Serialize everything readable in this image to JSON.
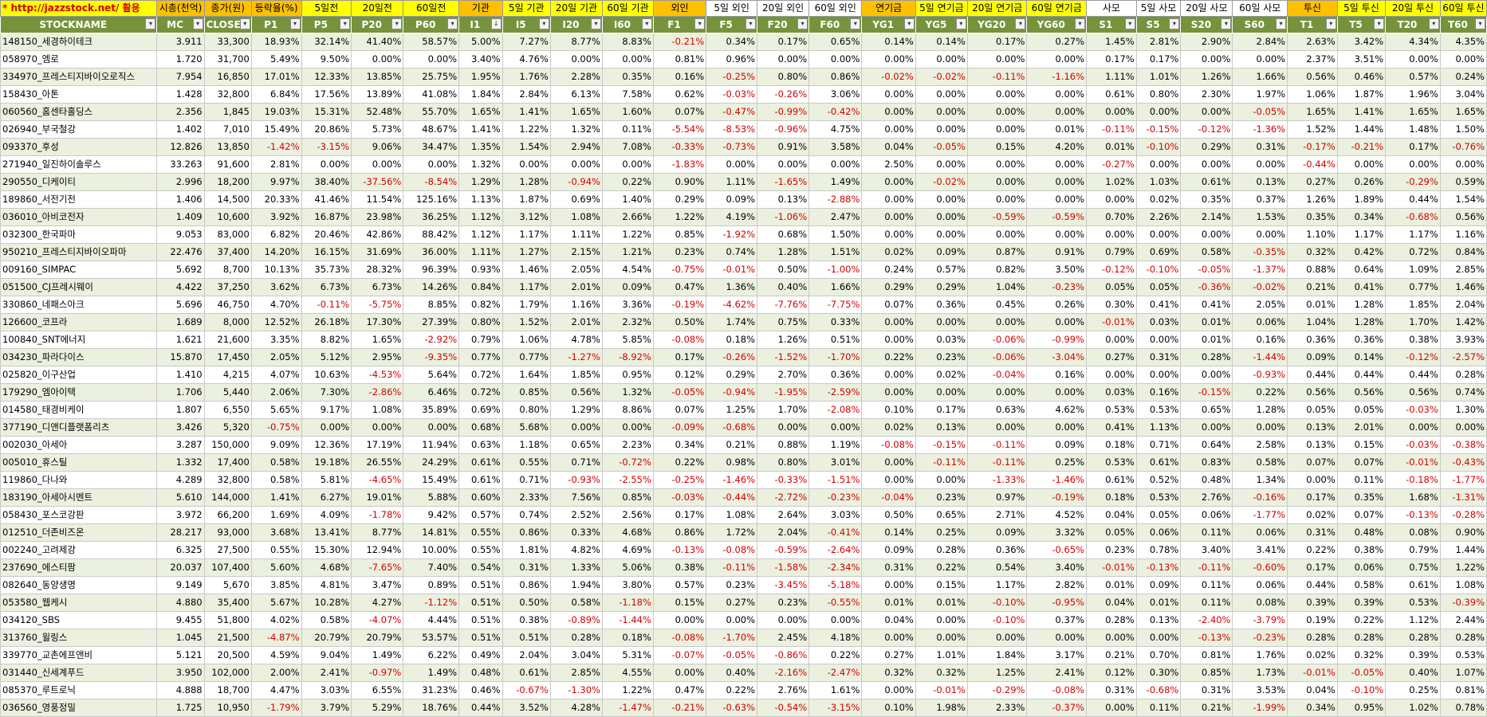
{
  "sheet": {
    "link_text": "* http://jazzstock.net/ 활용",
    "group_headers": [
      "시총(천억)",
      "종가(원)",
      "등락율(%)",
      "5일전",
      "20일전",
      "60일전",
      "기관",
      "5일 기관",
      "20일 기관",
      "60일 기관",
      "외인",
      "5일 외인",
      "20일 외인",
      "60일 외인",
      "연기금",
      "5일 연기금",
      "20일 연기금",
      "60일 연기금",
      "사모",
      "5일 사모",
      "20일 사모",
      "60일 사모",
      "투신",
      "5일 투신",
      "20일 투신",
      "60일 투신"
    ],
    "columns": [
      "STOCKNAME",
      "MC",
      "CLOSE",
      "P1",
      "P5",
      "P20",
      "P60",
      "I1",
      "I5",
      "I20",
      "I60",
      "F1",
      "F5",
      "F20",
      "F60",
      "YG1",
      "YG5",
      "YG20",
      "YG60",
      "S1",
      "S5",
      "S20",
      "S60",
      "T1",
      "T5",
      "T20",
      "T60"
    ],
    "sort_indicator_col": "I1",
    "rows": [
      [
        "148150_세경하이테크",
        "3.911",
        "33,300",
        "18.93%",
        "32.14%",
        "41.40%",
        "58.57%",
        "5.00%",
        "7.27%",
        "8.77%",
        "8.83%",
        "-0.21%",
        "0.34%",
        "0.17%",
        "0.65%",
        "0.14%",
        "0.14%",
        "0.17%",
        "0.27%",
        "1.45%",
        "2.81%",
        "2.90%",
        "2.84%",
        "2.63%",
        "3.42%",
        "4.34%",
        "4.35%"
      ],
      [
        "058970_엠로",
        "1.720",
        "31,700",
        "5.49%",
        "9.50%",
        "0.00%",
        "0.00%",
        "3.40%",
        "4.76%",
        "0.00%",
        "0.00%",
        "0.81%",
        "0.96%",
        "0.00%",
        "0.00%",
        "0.00%",
        "0.00%",
        "0.00%",
        "0.00%",
        "0.17%",
        "0.17%",
        "0.00%",
        "0.00%",
        "2.37%",
        "3.51%",
        "0.00%",
        "0.00%"
      ],
      [
        "334970_프레스티지바이오로직스",
        "7.954",
        "16,850",
        "17.01%",
        "12.33%",
        "13.85%",
        "25.75%",
        "1.95%",
        "1.76%",
        "2.28%",
        "0.35%",
        "0.16%",
        "-0.25%",
        "0.80%",
        "0.86%",
        "-0.02%",
        "-0.02%",
        "-0.11%",
        "-1.16%",
        "1.11%",
        "1.01%",
        "1.26%",
        "1.66%",
        "0.56%",
        "0.46%",
        "0.57%",
        "0.24%"
      ],
      [
        "158430_아톤",
        "1.428",
        "32,800",
        "6.84%",
        "17.56%",
        "13.89%",
        "41.08%",
        "1.84%",
        "2.84%",
        "6.13%",
        "7.58%",
        "0.62%",
        "-0.03%",
        "-0.26%",
        "3.06%",
        "0.00%",
        "0.00%",
        "0.00%",
        "0.00%",
        "0.61%",
        "0.80%",
        "2.30%",
        "1.97%",
        "1.06%",
        "1.87%",
        "1.96%",
        "3.04%"
      ],
      [
        "060560_홈센타홀딩스",
        "2.356",
        "1,845",
        "19.03%",
        "15.31%",
        "52.48%",
        "55.70%",
        "1.65%",
        "1.41%",
        "1.65%",
        "1.60%",
        "0.07%",
        "-0.47%",
        "-0.99%",
        "-0.42%",
        "0.00%",
        "0.00%",
        "0.00%",
        "0.00%",
        "0.00%",
        "0.00%",
        "0.00%",
        "-0.05%",
        "1.65%",
        "1.41%",
        "1.65%",
        "1.65%"
      ],
      [
        "026940_부국철강",
        "1.402",
        "7,010",
        "15.49%",
        "20.86%",
        "5.73%",
        "48.67%",
        "1.41%",
        "1.22%",
        "1.32%",
        "0.11%",
        "-5.54%",
        "-8.53%",
        "-0.96%",
        "4.75%",
        "0.00%",
        "0.00%",
        "0.00%",
        "0.01%",
        "-0.11%",
        "-0.15%",
        "-0.12%",
        "-1.36%",
        "1.52%",
        "1.44%",
        "1.48%",
        "1.50%"
      ],
      [
        "093370_후성",
        "12.826",
        "13,850",
        "-1.42%",
        "-3.15%",
        "9.06%",
        "34.47%",
        "1.35%",
        "1.54%",
        "2.94%",
        "7.08%",
        "-0.33%",
        "-0.73%",
        "0.91%",
        "3.58%",
        "0.04%",
        "-0.05%",
        "0.15%",
        "4.20%",
        "0.01%",
        "-0.10%",
        "0.29%",
        "0.31%",
        "-0.17%",
        "-0.21%",
        "0.17%",
        "-0.76%"
      ],
      [
        "271940_일진하이솔루스",
        "33.263",
        "91,600",
        "2.81%",
        "0.00%",
        "0.00%",
        "0.00%",
        "1.32%",
        "0.00%",
        "0.00%",
        "0.00%",
        "-1.83%",
        "0.00%",
        "0.00%",
        "0.00%",
        "2.50%",
        "0.00%",
        "0.00%",
        "0.00%",
        "-0.27%",
        "0.00%",
        "0.00%",
        "0.00%",
        "-0.44%",
        "0.00%",
        "0.00%",
        "0.00%"
      ],
      [
        "290550_디케이티",
        "2.996",
        "18,200",
        "9.97%",
        "38.40%",
        "-37.56%",
        "-8.54%",
        "1.29%",
        "1.28%",
        "-0.94%",
        "0.22%",
        "0.90%",
        "1.11%",
        "-1.65%",
        "1.49%",
        "0.00%",
        "-0.02%",
        "0.00%",
        "0.00%",
        "1.02%",
        "1.03%",
        "0.61%",
        "0.13%",
        "0.27%",
        "0.26%",
        "-0.29%",
        "0.59%"
      ],
      [
        "189860_서전기전",
        "1.406",
        "14,500",
        "20.33%",
        "41.46%",
        "11.54%",
        "125.16%",
        "1.13%",
        "1.87%",
        "0.69%",
        "1.40%",
        "0.29%",
        "0.09%",
        "0.13%",
        "-2.88%",
        "0.00%",
        "0.00%",
        "0.00%",
        "0.00%",
        "0.00%",
        "0.02%",
        "0.35%",
        "0.37%",
        "1.26%",
        "1.89%",
        "0.44%",
        "1.54%"
      ],
      [
        "036010_아비코전자",
        "1.409",
        "10,600",
        "3.92%",
        "16.87%",
        "23.98%",
        "36.25%",
        "1.12%",
        "3.12%",
        "1.08%",
        "2.66%",
        "1.22%",
        "4.19%",
        "-1.06%",
        "2.47%",
        "0.00%",
        "0.00%",
        "-0.59%",
        "-0.59%",
        "0.70%",
        "2.26%",
        "2.14%",
        "1.53%",
        "0.35%",
        "0.34%",
        "-0.68%",
        "0.56%"
      ],
      [
        "032300_한국파마",
        "9.053",
        "83,000",
        "6.82%",
        "20.46%",
        "42.86%",
        "88.42%",
        "1.12%",
        "1.17%",
        "1.11%",
        "1.22%",
        "0.85%",
        "-1.92%",
        "0.68%",
        "1.50%",
        "0.00%",
        "0.00%",
        "0.00%",
        "0.00%",
        "0.00%",
        "0.00%",
        "0.00%",
        "0.00%",
        "1.10%",
        "1.17%",
        "1.17%",
        "1.16%"
      ],
      [
        "950210_프레스티지바이오파마",
        "22.476",
        "37,400",
        "14.20%",
        "16.15%",
        "31.69%",
        "36.00%",
        "1.11%",
        "1.27%",
        "2.15%",
        "1.21%",
        "0.23%",
        "0.74%",
        "1.28%",
        "1.51%",
        "0.02%",
        "0.09%",
        "0.87%",
        "0.91%",
        "0.79%",
        "0.69%",
        "0.58%",
        "-0.35%",
        "0.32%",
        "0.42%",
        "0.72%",
        "0.84%"
      ],
      [
        "009160_SIMPAC",
        "5.692",
        "8,700",
        "10.13%",
        "35.73%",
        "28.32%",
        "96.39%",
        "0.93%",
        "1.46%",
        "2.05%",
        "4.54%",
        "-0.75%",
        "-0.01%",
        "0.50%",
        "-1.00%",
        "0.24%",
        "0.57%",
        "0.82%",
        "3.50%",
        "-0.12%",
        "-0.10%",
        "-0.05%",
        "-1.37%",
        "0.88%",
        "0.64%",
        "1.09%",
        "2.85%"
      ],
      [
        "051500_CJ프레시웨이",
        "4.422",
        "37,250",
        "3.62%",
        "6.73%",
        "6.73%",
        "14.26%",
        "0.84%",
        "1.17%",
        "2.01%",
        "0.09%",
        "0.47%",
        "1.36%",
        "0.40%",
        "1.66%",
        "0.29%",
        "0.29%",
        "1.04%",
        "-0.23%",
        "0.05%",
        "0.05%",
        "-0.36%",
        "-0.02%",
        "0.21%",
        "0.41%",
        "0.77%",
        "1.46%"
      ],
      [
        "330860_네패스아크",
        "5.696",
        "46,750",
        "4.70%",
        "-0.11%",
        "-5.75%",
        "8.85%",
        "0.82%",
        "1.79%",
        "1.16%",
        "3.36%",
        "-0.19%",
        "-4.62%",
        "-7.76%",
        "-7.75%",
        "0.07%",
        "0.36%",
        "0.45%",
        "0.26%",
        "0.30%",
        "0.41%",
        "0.41%",
        "2.05%",
        "0.01%",
        "1.28%",
        "1.85%",
        "2.04%"
      ],
      [
        "126600_코프라",
        "1.689",
        "8,000",
        "12.52%",
        "26.18%",
        "17.30%",
        "27.39%",
        "0.80%",
        "1.52%",
        "2.01%",
        "2.32%",
        "0.50%",
        "1.74%",
        "0.75%",
        "0.33%",
        "0.00%",
        "0.00%",
        "0.00%",
        "0.00%",
        "-0.01%",
        "0.03%",
        "0.01%",
        "0.06%",
        "1.04%",
        "1.28%",
        "1.70%",
        "1.42%"
      ],
      [
        "100840_SNT에너지",
        "1.621",
        "21,600",
        "3.35%",
        "8.82%",
        "1.65%",
        "-2.92%",
        "0.79%",
        "1.06%",
        "4.78%",
        "5.85%",
        "-0.08%",
        "0.18%",
        "1.26%",
        "0.51%",
        "0.00%",
        "0.03%",
        "-0.06%",
        "-0.99%",
        "0.00%",
        "0.00%",
        "0.01%",
        "0.16%",
        "0.36%",
        "0.36%",
        "0.38%",
        "3.93%"
      ],
      [
        "034230_파라다이스",
        "15.870",
        "17,450",
        "2.05%",
        "5.12%",
        "2.95%",
        "-9.35%",
        "0.77%",
        "0.77%",
        "-1.27%",
        "-8.92%",
        "0.17%",
        "-0.26%",
        "-1.52%",
        "-1.70%",
        "0.22%",
        "0.23%",
        "-0.06%",
        "-3.04%",
        "0.27%",
        "0.31%",
        "0.28%",
        "-1.44%",
        "0.09%",
        "0.14%",
        "-0.12%",
        "-2.57%"
      ],
      [
        "025820_이구산업",
        "1.410",
        "4,215",
        "4.07%",
        "10.63%",
        "-4.53%",
        "5.64%",
        "0.72%",
        "1.64%",
        "1.85%",
        "0.95%",
        "0.12%",
        "0.29%",
        "2.70%",
        "0.36%",
        "0.00%",
        "0.02%",
        "-0.04%",
        "0.16%",
        "0.00%",
        "0.00%",
        "0.00%",
        "-0.93%",
        "0.44%",
        "0.44%",
        "0.44%",
        "0.28%"
      ],
      [
        "179290_엠아이텍",
        "1.706",
        "5,440",
        "2.06%",
        "7.30%",
        "-2.86%",
        "6.46%",
        "0.72%",
        "0.85%",
        "0.56%",
        "1.32%",
        "-0.05%",
        "-0.94%",
        "-1.95%",
        "-2.59%",
        "0.00%",
        "0.00%",
        "0.00%",
        "0.00%",
        "0.03%",
        "0.16%",
        "-0.15%",
        "0.22%",
        "0.56%",
        "0.56%",
        "0.56%",
        "0.74%"
      ],
      [
        "014580_태경비케이",
        "1.807",
        "6,550",
        "5.65%",
        "9.17%",
        "1.08%",
        "35.89%",
        "0.69%",
        "0.80%",
        "1.29%",
        "8.86%",
        "0.07%",
        "1.25%",
        "1.70%",
        "-2.08%",
        "0.10%",
        "0.17%",
        "0.63%",
        "4.62%",
        "0.53%",
        "0.53%",
        "0.65%",
        "1.28%",
        "0.05%",
        "0.05%",
        "-0.03%",
        "1.30%"
      ],
      [
        "377190_디앤디플랫폼리츠",
        "3.426",
        "5,320",
        "-0.75%",
        "0.00%",
        "0.00%",
        "0.00%",
        "0.68%",
        "5.68%",
        "0.00%",
        "0.00%",
        "-0.09%",
        "-0.68%",
        "0.00%",
        "0.00%",
        "0.02%",
        "0.13%",
        "0.00%",
        "0.00%",
        "0.41%",
        "1.13%",
        "0.00%",
        "0.00%",
        "0.13%",
        "2.01%",
        "0.00%",
        "0.00%"
      ],
      [
        "002030_아세아",
        "3.287",
        "150,000",
        "9.09%",
        "12.36%",
        "17.19%",
        "11.94%",
        "0.63%",
        "1.18%",
        "0.65%",
        "2.23%",
        "0.34%",
        "0.21%",
        "0.88%",
        "1.19%",
        "-0.08%",
        "-0.15%",
        "-0.11%",
        "0.09%",
        "0.18%",
        "0.71%",
        "0.64%",
        "2.58%",
        "0.13%",
        "0.15%",
        "-0.03%",
        "-0.38%"
      ],
      [
        "005010_휴스틸",
        "1.332",
        "17,400",
        "0.58%",
        "19.18%",
        "26.55%",
        "24.29%",
        "0.61%",
        "0.55%",
        "0.71%",
        "-0.72%",
        "0.22%",
        "0.98%",
        "0.80%",
        "3.01%",
        "0.00%",
        "-0.11%",
        "-0.11%",
        "0.25%",
        "0.53%",
        "0.61%",
        "0.83%",
        "0.58%",
        "0.07%",
        "0.07%",
        "-0.01%",
        "-0.43%"
      ],
      [
        "119860_다나와",
        "4.289",
        "32,800",
        "0.58%",
        "5.81%",
        "-4.65%",
        "15.49%",
        "0.61%",
        "0.71%",
        "-0.93%",
        "-2.55%",
        "-0.25%",
        "-1.46%",
        "-0.33%",
        "-1.51%",
        "0.00%",
        "0.00%",
        "-1.33%",
        "-1.46%",
        "0.61%",
        "0.52%",
        "0.48%",
        "1.34%",
        "0.00%",
        "0.11%",
        "-0.18%",
        "-1.77%"
      ],
      [
        "183190_아세아시멘트",
        "5.610",
        "144,000",
        "1.41%",
        "6.27%",
        "19.01%",
        "5.88%",
        "0.60%",
        "2.33%",
        "7.56%",
        "0.85%",
        "-0.03%",
        "-0.44%",
        "-2.72%",
        "-0.23%",
        "-0.04%",
        "0.23%",
        "0.97%",
        "-0.19%",
        "0.18%",
        "0.53%",
        "2.76%",
        "-0.16%",
        "0.17%",
        "0.35%",
        "1.68%",
        "-1.31%"
      ],
      [
        "058430_포스코강판",
        "3.972",
        "66,200",
        "1.69%",
        "4.09%",
        "-1.78%",
        "9.42%",
        "0.57%",
        "0.74%",
        "2.52%",
        "2.56%",
        "0.17%",
        "1.08%",
        "2.64%",
        "3.03%",
        "0.50%",
        "0.65%",
        "2.71%",
        "4.52%",
        "0.04%",
        "0.05%",
        "0.06%",
        "-1.77%",
        "0.02%",
        "0.07%",
        "-0.13%",
        "-0.28%"
      ],
      [
        "012510_더존비즈온",
        "28.217",
        "93,000",
        "3.68%",
        "13.41%",
        "8.77%",
        "14.81%",
        "0.55%",
        "0.86%",
        "0.33%",
        "4.68%",
        "0.86%",
        "1.72%",
        "2.04%",
        "-0.41%",
        "0.14%",
        "0.25%",
        "0.09%",
        "3.32%",
        "0.05%",
        "0.06%",
        "0.11%",
        "0.06%",
        "0.31%",
        "0.48%",
        "0.08%",
        "0.90%"
      ],
      [
        "002240_고려제강",
        "6.325",
        "27,500",
        "0.55%",
        "15.30%",
        "12.94%",
        "10.00%",
        "0.55%",
        "1.81%",
        "4.82%",
        "4.69%",
        "-0.13%",
        "-0.08%",
        "-0.59%",
        "-2.64%",
        "0.09%",
        "0.28%",
        "0.36%",
        "-0.65%",
        "0.23%",
        "0.78%",
        "3.40%",
        "3.41%",
        "0.22%",
        "0.38%",
        "0.79%",
        "1.44%"
      ],
      [
        "237690_에스티팜",
        "20.037",
        "107,400",
        "5.60%",
        "4.68%",
        "-7.65%",
        "7.40%",
        "0.54%",
        "0.31%",
        "1.33%",
        "5.06%",
        "0.38%",
        "-0.11%",
        "-1.58%",
        "-2.34%",
        "0.31%",
        "0.22%",
        "0.54%",
        "3.40%",
        "-0.01%",
        "-0.13%",
        "-0.11%",
        "-0.60%",
        "0.17%",
        "0.06%",
        "0.75%",
        "1.22%"
      ],
      [
        "082640_동양생명",
        "9.149",
        "5,670",
        "3.85%",
        "4.81%",
        "3.47%",
        "0.89%",
        "0.51%",
        "0.86%",
        "1.94%",
        "3.80%",
        "0.57%",
        "0.23%",
        "-3.45%",
        "-5.18%",
        "0.00%",
        "0.15%",
        "1.17%",
        "2.82%",
        "0.01%",
        "0.09%",
        "0.11%",
        "0.06%",
        "0.44%",
        "0.58%",
        "0.61%",
        "1.08%"
      ],
      [
        "053580_웹케시",
        "4.880",
        "35,400",
        "5.67%",
        "10.28%",
        "4.27%",
        "-1.12%",
        "0.51%",
        "0.50%",
        "0.58%",
        "-1.18%",
        "0.15%",
        "0.27%",
        "0.23%",
        "-0.55%",
        "0.01%",
        "0.01%",
        "-0.10%",
        "-0.95%",
        "0.04%",
        "0.01%",
        "0.11%",
        "0.08%",
        "0.39%",
        "0.39%",
        "0.53%",
        "-0.39%"
      ],
      [
        "034120_SBS",
        "9.455",
        "51,800",
        "4.02%",
        "0.58%",
        "-4.07%",
        "4.44%",
        "0.51%",
        "0.38%",
        "-0.89%",
        "-1.44%",
        "0.00%",
        "0.00%",
        "0.00%",
        "0.00%",
        "0.04%",
        "0.00%",
        "-0.10%",
        "0.37%",
        "0.28%",
        "0.13%",
        "-2.40%",
        "-3.79%",
        "0.19%",
        "0.22%",
        "1.12%",
        "2.44%"
      ],
      [
        "313760_윌링스",
        "1.045",
        "21,500",
        "-4.87%",
        "20.79%",
        "20.79%",
        "53.57%",
        "0.51%",
        "0.51%",
        "0.28%",
        "0.18%",
        "-0.08%",
        "-1.70%",
        "2.45%",
        "4.18%",
        "0.00%",
        "0.00%",
        "0.00%",
        "0.00%",
        "0.00%",
        "0.00%",
        "-0.13%",
        "-0.23%",
        "0.28%",
        "0.28%",
        "0.28%",
        "0.28%"
      ],
      [
        "339770_교촌에프앤비",
        "5.121",
        "20,500",
        "4.59%",
        "9.04%",
        "1.49%",
        "6.22%",
        "0.49%",
        "2.04%",
        "3.04%",
        "5.31%",
        "-0.07%",
        "-0.05%",
        "-0.86%",
        "0.22%",
        "0.27%",
        "1.01%",
        "1.84%",
        "3.17%",
        "0.21%",
        "0.70%",
        "0.81%",
        "1.76%",
        "0.02%",
        "0.32%",
        "0.39%",
        "0.53%"
      ],
      [
        "031440_신세계푸드",
        "3.950",
        "102,000",
        "2.00%",
        "2.41%",
        "-0.97%",
        "1.49%",
        "0.48%",
        "0.61%",
        "2.85%",
        "4.55%",
        "0.00%",
        "0.40%",
        "-2.16%",
        "-2.47%",
        "0.32%",
        "0.32%",
        "1.25%",
        "2.41%",
        "0.12%",
        "0.30%",
        "0.85%",
        "1.73%",
        "-0.01%",
        "-0.05%",
        "0.40%",
        "1.07%"
      ],
      [
        "085370_루트로닉",
        "4.888",
        "18,700",
        "4.47%",
        "3.03%",
        "6.55%",
        "31.23%",
        "0.46%",
        "-0.67%",
        "-1.30%",
        "1.22%",
        "0.47%",
        "0.22%",
        "2.76%",
        "1.61%",
        "0.00%",
        "-0.01%",
        "-0.29%",
        "-0.08%",
        "0.31%",
        "-0.68%",
        "0.31%",
        "3.53%",
        "0.04%",
        "-0.10%",
        "0.25%",
        "0.81%"
      ],
      [
        "036560_영풍정밀",
        "1.725",
        "10,950",
        "-1.79%",
        "3.79%",
        "5.29%",
        "18.76%",
        "0.44%",
        "3.52%",
        "4.28%",
        "-1.47%",
        "-0.21%",
        "-0.63%",
        "-0.54%",
        "-3.15%",
        "0.10%",
        "1.98%",
        "2.33%",
        "-0.37%",
        "0.00%",
        "0.11%",
        "0.21%",
        "-1.99%",
        "0.34%",
        "0.95%",
        "1.02%",
        "0.78%"
      ]
    ]
  }
}
